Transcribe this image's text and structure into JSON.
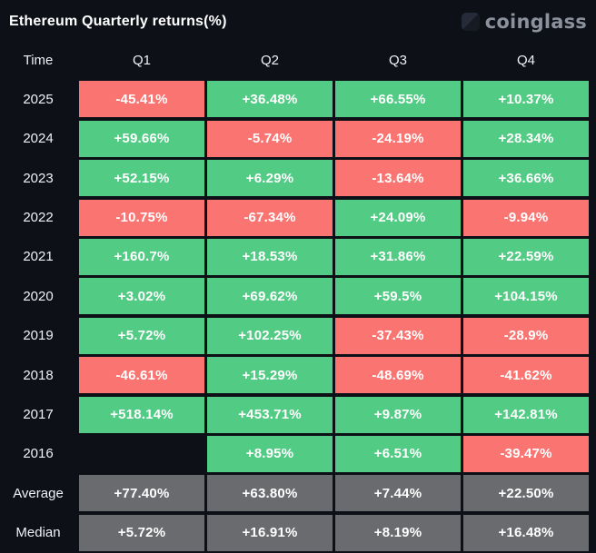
{
  "header": {
    "title": "Ethereum Quarterly returns(%)",
    "brand": "coinglass"
  },
  "colors": {
    "background": "#0d1016",
    "positive": "#52cb84",
    "negative": "#fa7471",
    "neutral": "#6a6b6e",
    "text": "#ffffff",
    "brand_text": "#8b919d"
  },
  "table": {
    "columns": [
      "Time",
      "Q1",
      "Q2",
      "Q3",
      "Q4"
    ],
    "rows": [
      {
        "label": "2025",
        "cells": [
          {
            "value": "-45.41%",
            "type": "down"
          },
          {
            "value": "+36.48%",
            "type": "up"
          },
          {
            "value": "+66.55%",
            "type": "up"
          },
          {
            "value": "+10.37%",
            "type": "up"
          }
        ]
      },
      {
        "label": "2024",
        "cells": [
          {
            "value": "+59.66%",
            "type": "up"
          },
          {
            "value": "-5.74%",
            "type": "down"
          },
          {
            "value": "-24.19%",
            "type": "down"
          },
          {
            "value": "+28.34%",
            "type": "up"
          }
        ]
      },
      {
        "label": "2023",
        "cells": [
          {
            "value": "+52.15%",
            "type": "up"
          },
          {
            "value": "+6.29%",
            "type": "up"
          },
          {
            "value": "-13.64%",
            "type": "down"
          },
          {
            "value": "+36.66%",
            "type": "up"
          }
        ]
      },
      {
        "label": "2022",
        "cells": [
          {
            "value": "-10.75%",
            "type": "down"
          },
          {
            "value": "-67.34%",
            "type": "down"
          },
          {
            "value": "+24.09%",
            "type": "up"
          },
          {
            "value": "-9.94%",
            "type": "down"
          }
        ]
      },
      {
        "label": "2021",
        "cells": [
          {
            "value": "+160.7%",
            "type": "up"
          },
          {
            "value": "+18.53%",
            "type": "up"
          },
          {
            "value": "+31.86%",
            "type": "up"
          },
          {
            "value": "+22.59%",
            "type": "up"
          }
        ]
      },
      {
        "label": "2020",
        "cells": [
          {
            "value": "+3.02%",
            "type": "up"
          },
          {
            "value": "+69.62%",
            "type": "up"
          },
          {
            "value": "+59.5%",
            "type": "up"
          },
          {
            "value": "+104.15%",
            "type": "up"
          }
        ]
      },
      {
        "label": "2019",
        "cells": [
          {
            "value": "+5.72%",
            "type": "up"
          },
          {
            "value": "+102.25%",
            "type": "up"
          },
          {
            "value": "-37.43%",
            "type": "down"
          },
          {
            "value": "-28.9%",
            "type": "down"
          }
        ]
      },
      {
        "label": "2018",
        "cells": [
          {
            "value": "-46.61%",
            "type": "down"
          },
          {
            "value": "+15.29%",
            "type": "up"
          },
          {
            "value": "-48.69%",
            "type": "down"
          },
          {
            "value": "-41.62%",
            "type": "down"
          }
        ]
      },
      {
        "label": "2017",
        "cells": [
          {
            "value": "+518.14%",
            "type": "up"
          },
          {
            "value": "+453.71%",
            "type": "up"
          },
          {
            "value": "+9.87%",
            "type": "up"
          },
          {
            "value": "+142.81%",
            "type": "up"
          }
        ]
      },
      {
        "label": "2016",
        "cells": [
          {
            "value": "",
            "type": "empty"
          },
          {
            "value": "+8.95%",
            "type": "up"
          },
          {
            "value": "+6.51%",
            "type": "up"
          },
          {
            "value": "-39.47%",
            "type": "down"
          }
        ]
      },
      {
        "label": "Average",
        "cells": [
          {
            "value": "+77.40%",
            "type": "neutral"
          },
          {
            "value": "+63.80%",
            "type": "neutral"
          },
          {
            "value": "+7.44%",
            "type": "neutral"
          },
          {
            "value": "+22.50%",
            "type": "neutral"
          }
        ]
      },
      {
        "label": "Median",
        "cells": [
          {
            "value": "+5.72%",
            "type": "neutral"
          },
          {
            "value": "+16.91%",
            "type": "neutral"
          },
          {
            "value": "+8.19%",
            "type": "neutral"
          },
          {
            "value": "+16.48%",
            "type": "neutral"
          }
        ]
      }
    ]
  },
  "chart_data": {
    "type": "heatmap",
    "title": "Ethereum Quarterly returns(%)",
    "columns": [
      "Q1",
      "Q2",
      "Q3",
      "Q4"
    ],
    "unit": "percent",
    "color_coding": "green = positive return, red = negative return, gray = summary rows",
    "rows": [
      {
        "time": "2025",
        "values": [
          -45.41,
          36.48,
          66.55,
          10.37
        ]
      },
      {
        "time": "2024",
        "values": [
          59.66,
          -5.74,
          -24.19,
          28.34
        ]
      },
      {
        "time": "2023",
        "values": [
          52.15,
          6.29,
          -13.64,
          36.66
        ]
      },
      {
        "time": "2022",
        "values": [
          -10.75,
          -67.34,
          24.09,
          -9.94
        ]
      },
      {
        "time": "2021",
        "values": [
          160.7,
          18.53,
          31.86,
          22.59
        ]
      },
      {
        "time": "2020",
        "values": [
          3.02,
          69.62,
          59.5,
          104.15
        ]
      },
      {
        "time": "2019",
        "values": [
          5.72,
          102.25,
          -37.43,
          -28.9
        ]
      },
      {
        "time": "2018",
        "values": [
          -46.61,
          15.29,
          -48.69,
          -41.62
        ]
      },
      {
        "time": "2017",
        "values": [
          518.14,
          453.71,
          9.87,
          142.81
        ]
      },
      {
        "time": "2016",
        "values": [
          null,
          8.95,
          6.51,
          -39.47
        ]
      },
      {
        "time": "Average",
        "values": [
          77.4,
          63.8,
          7.44,
          22.5
        ]
      },
      {
        "time": "Median",
        "values": [
          5.72,
          16.91,
          8.19,
          16.48
        ]
      }
    ]
  }
}
